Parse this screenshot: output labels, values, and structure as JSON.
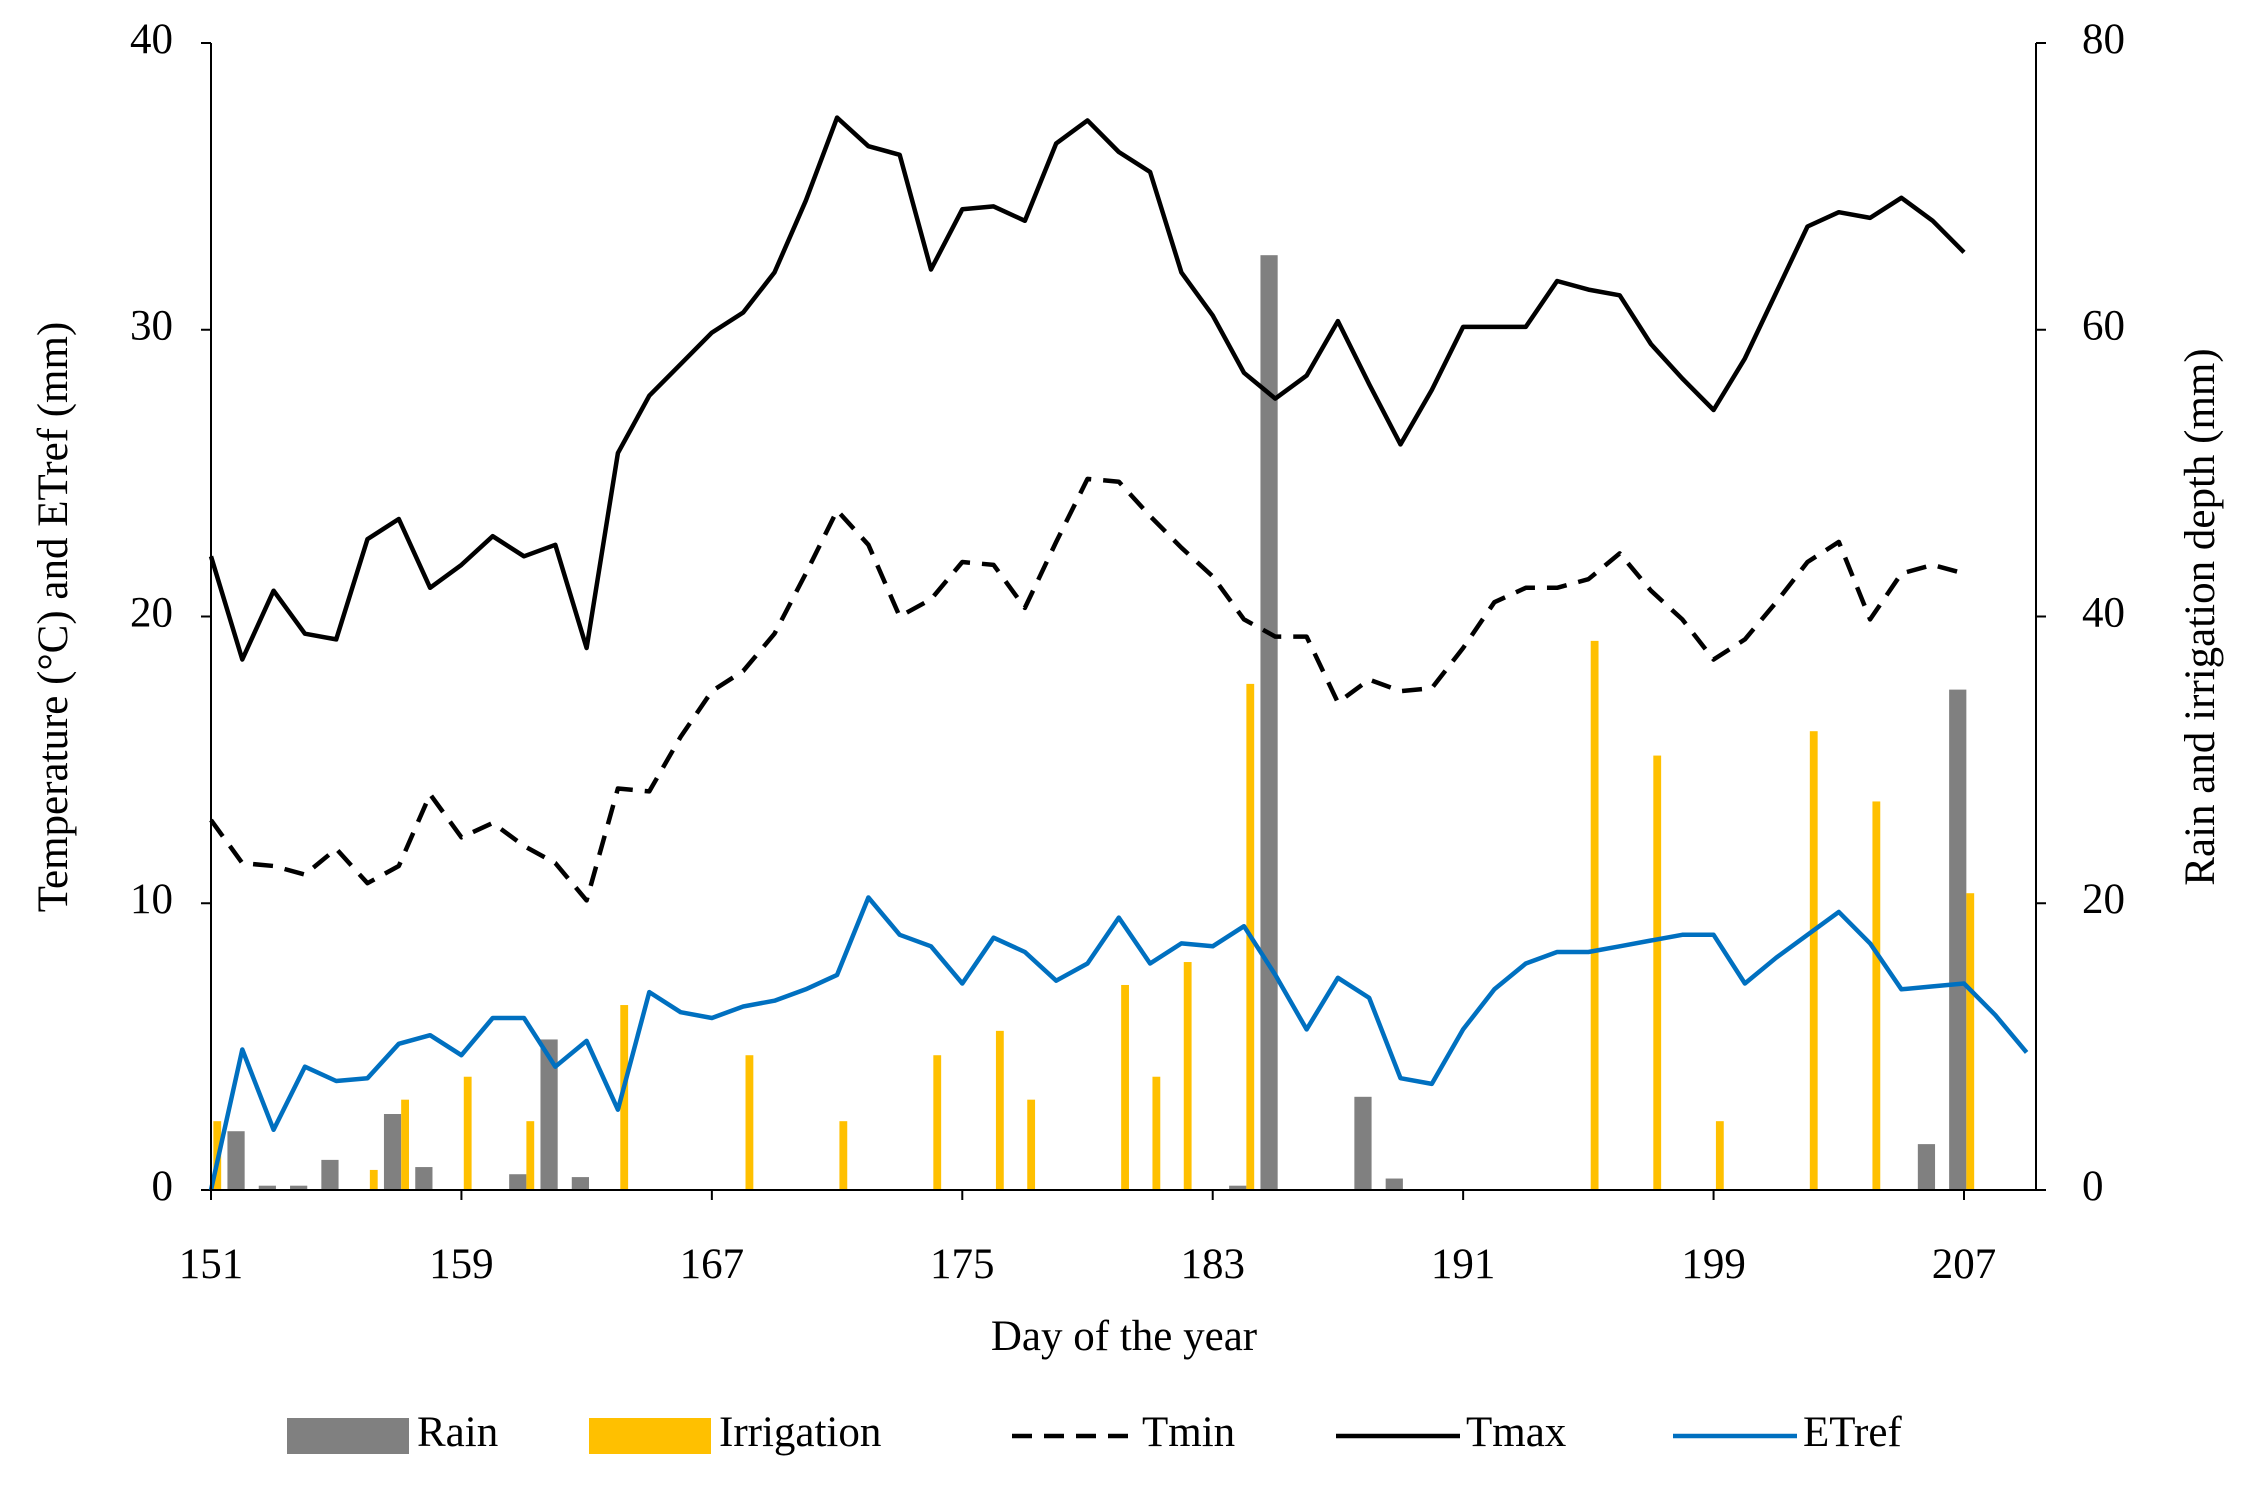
{
  "chart_data": {
    "type": "bar-line",
    "x": [
      151,
      152,
      153,
      154,
      155,
      156,
      157,
      158,
      159,
      160,
      161,
      162,
      163,
      164,
      165,
      166,
      167,
      168,
      169,
      170,
      171,
      172,
      173,
      174,
      175,
      176,
      177,
      178,
      179,
      180,
      181,
      182,
      183,
      184,
      185,
      186,
      187,
      188,
      189,
      190,
      191,
      192,
      193,
      194,
      195,
      196,
      197,
      198,
      199,
      200,
      201,
      202,
      203,
      204,
      205,
      206,
      207,
      208,
      209
    ],
    "xlabel": "Day of the year",
    "ylabel": "Temperature  (°C) and ETref (mm)",
    "y2label": "Rain and irrigation depth (mm)",
    "xlim": [
      151,
      209.3
    ],
    "xticks": [
      151,
      159,
      167,
      175,
      183,
      191,
      199,
      207
    ],
    "ylim": [
      0,
      40
    ],
    "yticks": [
      0,
      10,
      20,
      30,
      40
    ],
    "y2lim": [
      0,
      80
    ],
    "y2ticks": [
      0,
      20,
      40,
      60,
      80
    ],
    "legend": "bottom",
    "series": [
      {
        "name": "Rain",
        "type": "bar",
        "axis": "y2",
        "color": "#808080",
        "values": [
          null,
          4.1,
          0.3,
          0.3,
          2.1,
          null,
          5.3,
          1.6,
          null,
          null,
          1.1,
          10.5,
          0.9,
          null,
          null,
          null,
          null,
          null,
          null,
          null,
          null,
          null,
          null,
          null,
          null,
          null,
          null,
          null,
          null,
          null,
          null,
          null,
          null,
          0.3,
          65.2,
          null,
          null,
          6.5,
          0.8,
          null,
          null,
          null,
          null,
          null,
          null,
          null,
          null,
          null,
          null,
          null,
          null,
          null,
          null,
          null,
          null,
          3.2,
          34.9,
          null,
          null
        ]
      },
      {
        "name": "Irrigation",
        "type": "bar",
        "axis": "y2",
        "color": "#ffc000",
        "values": [
          4.8,
          null,
          null,
          null,
          null,
          1.4,
          6.3,
          null,
          7.9,
          null,
          4.8,
          null,
          null,
          12.9,
          null,
          null,
          null,
          9.4,
          null,
          null,
          4.8,
          null,
          null,
          9.4,
          null,
          11.1,
          6.3,
          null,
          null,
          14.3,
          7.9,
          15.9,
          null,
          35.3,
          null,
          null,
          null,
          null,
          null,
          null,
          null,
          null,
          null,
          null,
          38.3,
          null,
          30.3,
          null,
          4.8,
          null,
          null,
          32.0,
          null,
          27.1,
          null,
          null,
          20.7,
          null,
          null
        ]
      },
      {
        "name": "Tmin",
        "type": "line",
        "dash": true,
        "color": "#000000",
        "values": [
          12.9,
          11.4,
          11.3,
          11.0,
          11.9,
          10.7,
          11.3,
          13.8,
          12.3,
          12.8,
          12.0,
          11.4,
          10.1,
          14.0,
          13.9,
          15.8,
          17.4,
          18.1,
          19.4,
          21.5,
          23.7,
          22.5,
          20.0,
          20.6,
          21.9,
          21.8,
          20.3,
          22.6,
          24.8,
          24.7,
          23.5,
          22.4,
          21.4,
          19.9,
          19.3,
          19.3,
          17.0,
          17.8,
          17.4,
          17.5,
          18.9,
          20.5,
          21.0,
          21.0,
          21.3,
          22.2,
          20.9,
          19.9,
          18.5,
          19.2,
          20.5,
          21.9,
          22.6,
          19.9,
          21.5,
          21.8,
          21.5,
          null,
          null
        ]
      },
      {
        "name": "Tmax",
        "type": "line",
        "color": "#000000",
        "values": [
          22.1,
          18.5,
          20.9,
          19.4,
          19.2,
          22.7,
          23.4,
          21.0,
          21.8,
          22.8,
          22.1,
          22.5,
          18.9,
          25.7,
          27.7,
          28.8,
          29.9,
          30.6,
          32.0,
          34.5,
          37.4,
          36.4,
          36.1,
          32.1,
          34.2,
          34.3,
          33.8,
          36.5,
          37.3,
          36.2,
          35.5,
          32.0,
          30.5,
          28.5,
          27.6,
          28.4,
          30.3,
          28.1,
          26.0,
          27.9,
          30.1,
          30.1,
          30.1,
          31.7,
          31.4,
          31.2,
          29.5,
          28.3,
          27.2,
          29.0,
          31.3,
          33.6,
          34.1,
          33.9,
          34.6,
          33.8,
          32.7,
          null,
          null
        ]
      },
      {
        "name": "ETref",
        "type": "line",
        "color": "#0070c0",
        "values": [
          0,
          4.9,
          2.1,
          4.3,
          3.8,
          3.9,
          5.1,
          5.4,
          4.7,
          6.0,
          6.0,
          4.3,
          5.2,
          2.8,
          6.9,
          6.2,
          6.0,
          6.4,
          6.6,
          7.0,
          7.5,
          10.2,
          8.9,
          8.5,
          7.2,
          8.8,
          8.3,
          7.3,
          7.9,
          9.5,
          7.9,
          8.6,
          8.5,
          9.2,
          7.5,
          5.6,
          7.4,
          6.7,
          3.9,
          3.7,
          5.6,
          7.0,
          7.9,
          8.3,
          8.3,
          8.5,
          8.7,
          8.9,
          8.9,
          7.2,
          8.1,
          8.9,
          9.7,
          8.6,
          7.0,
          7.1,
          7.2,
          6.1,
          4.8
        ]
      }
    ]
  }
}
